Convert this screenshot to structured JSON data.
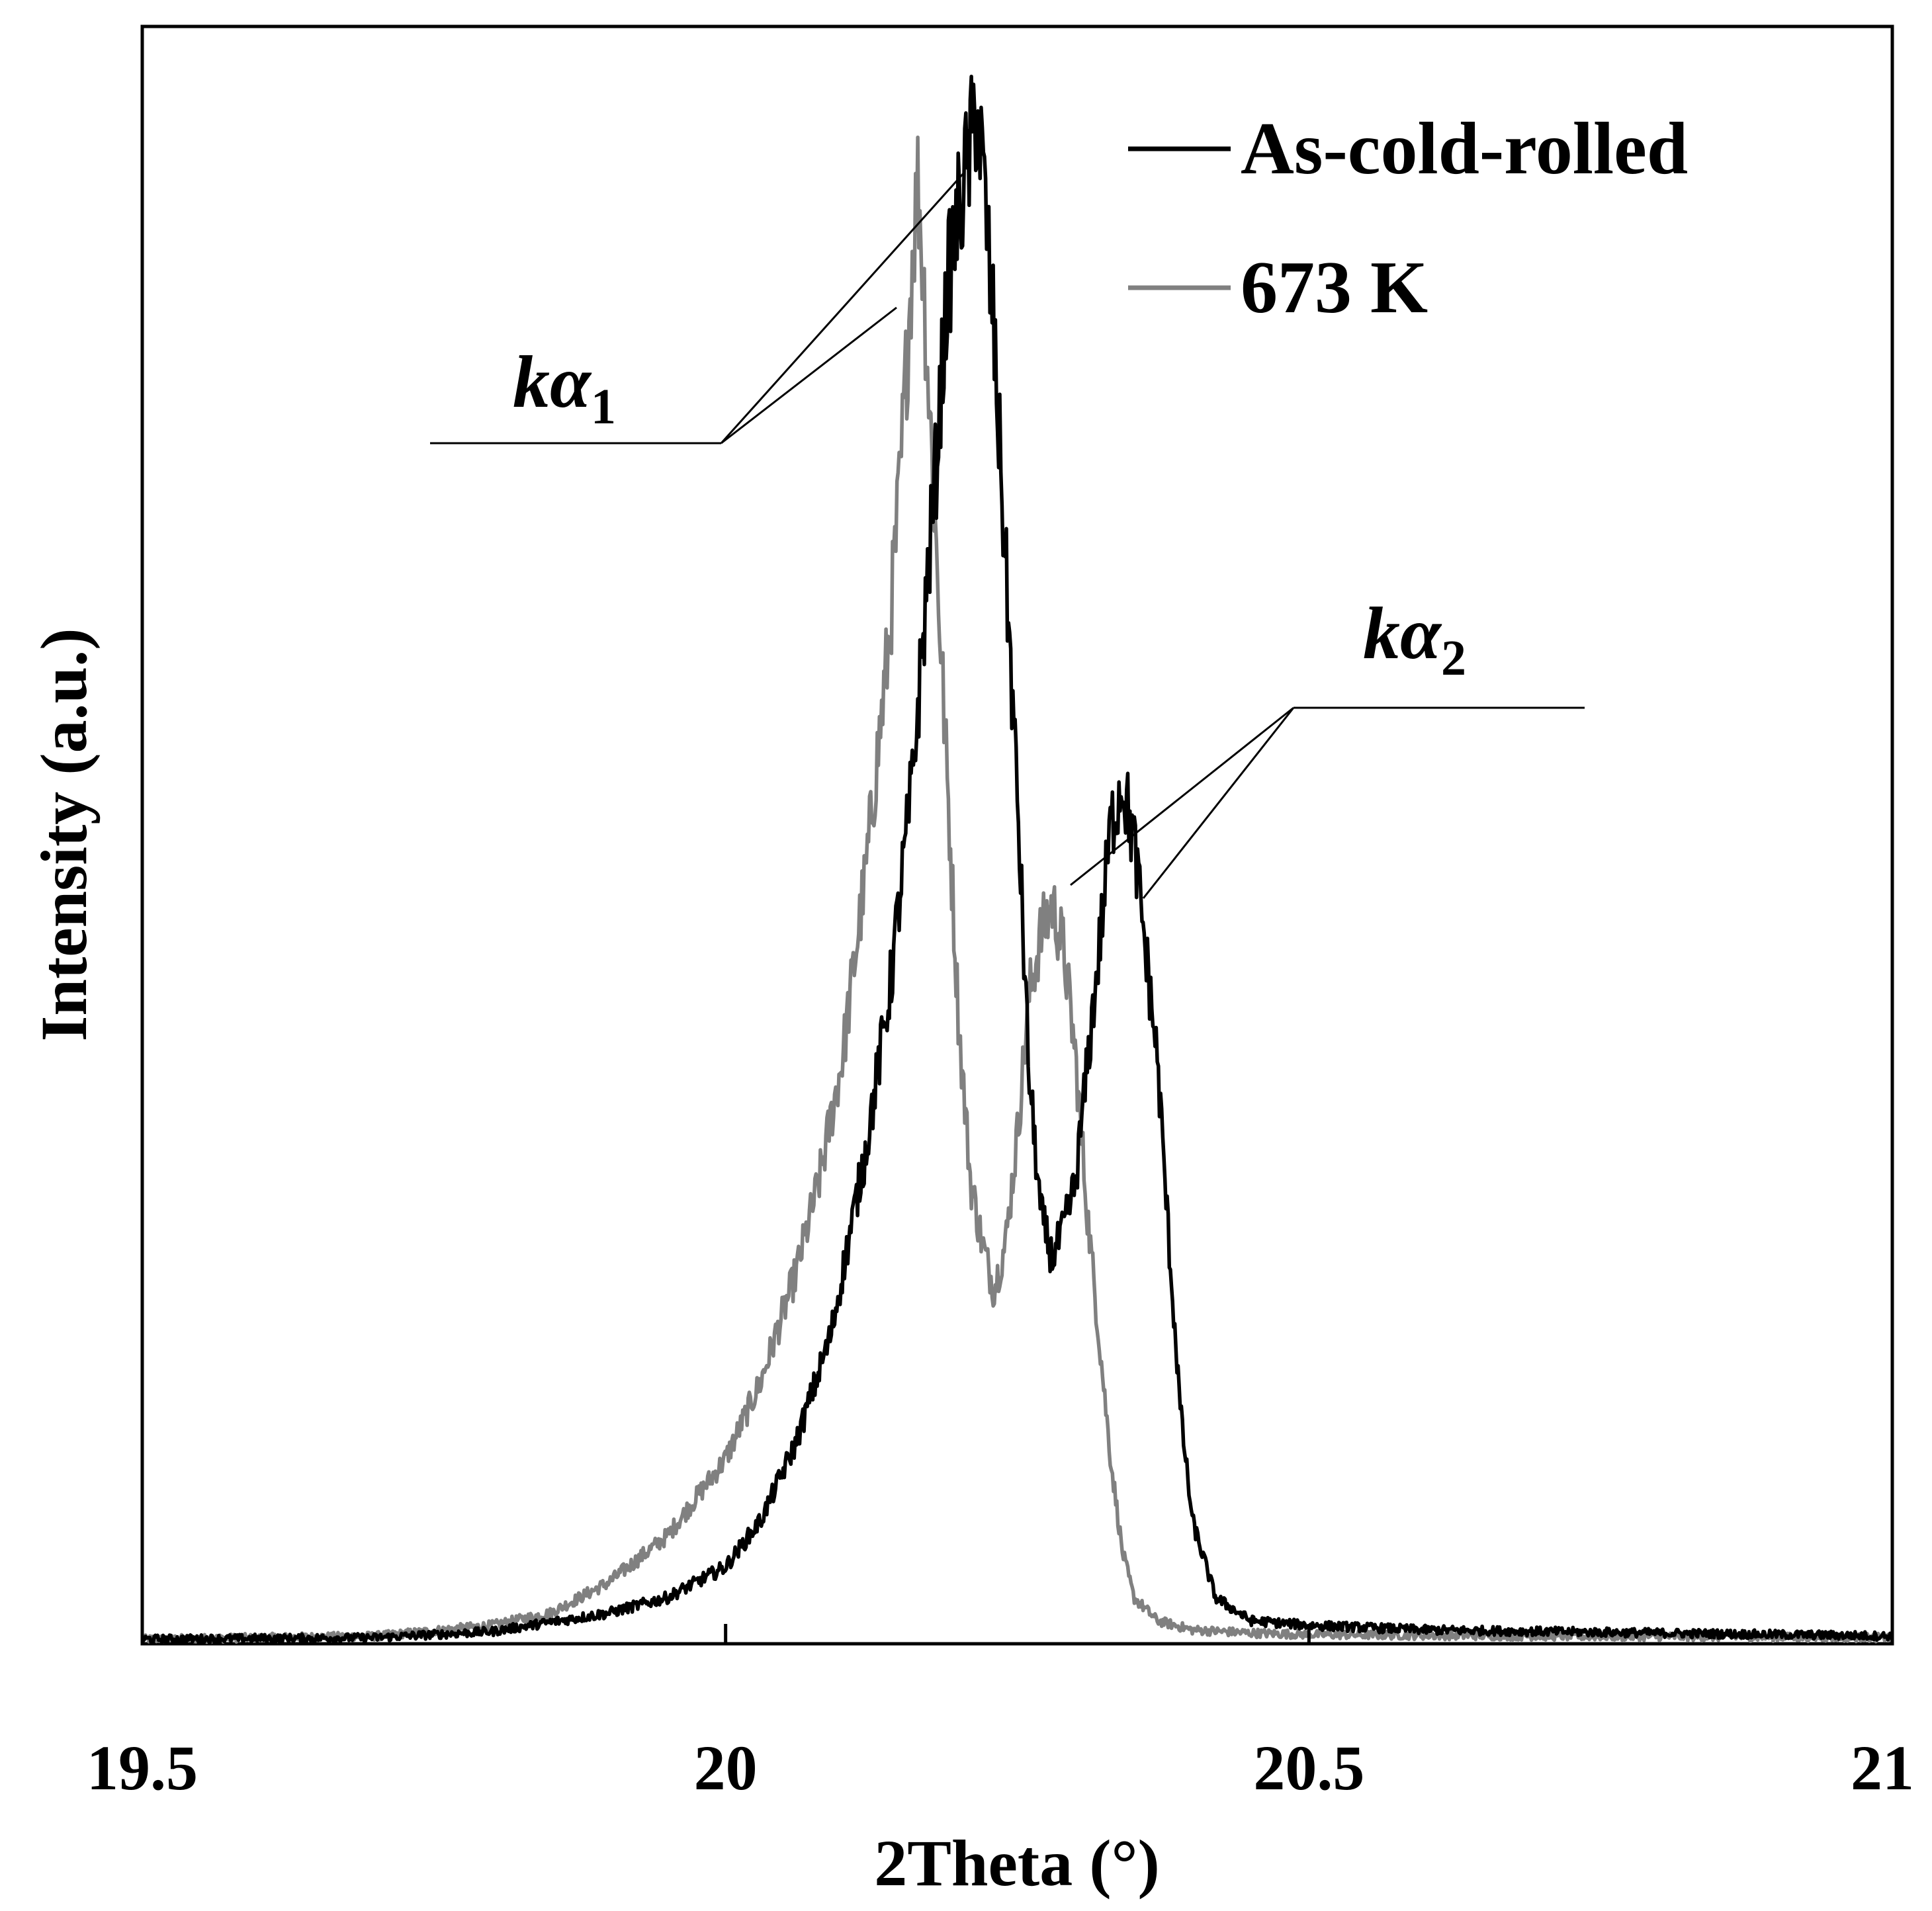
{
  "chart_data": {
    "type": "line",
    "title": "",
    "xlabel": "2Theta (°)",
    "ylabel": "Intensity (a.u.)",
    "xlim": [
      19.5,
      21
    ],
    "ylim": [
      0,
      1.05
    ],
    "xticks": [
      19.5,
      20,
      20.5,
      21
    ],
    "xtick_labels": [
      "19.5",
      "20",
      "20.5",
      "21"
    ],
    "grid": false,
    "legend_position": "top-right",
    "series": [
      {
        "name": "As-cold-rolled",
        "color": "#000000",
        "x": [
          19.5,
          19.7,
          19.8,
          19.9,
          19.95,
          20.0,
          20.03,
          20.06,
          20.09,
          20.12,
          20.14,
          20.16,
          20.18,
          20.19,
          20.2,
          20.21,
          20.215,
          20.22,
          20.23,
          20.24,
          20.25,
          20.26,
          20.27,
          20.28,
          20.29,
          20.3,
          20.32,
          20.33,
          20.34,
          20.35,
          20.36,
          20.37,
          20.38,
          20.39,
          20.4,
          20.42,
          20.45,
          20.5,
          20.6,
          20.8,
          21.0
        ],
        "y": [
          0.003,
          0.004,
          0.008,
          0.02,
          0.03,
          0.05,
          0.08,
          0.13,
          0.2,
          0.32,
          0.42,
          0.56,
          0.76,
          0.88,
          0.93,
          0.97,
          1.0,
          0.96,
          0.85,
          0.7,
          0.55,
          0.37,
          0.28,
          0.25,
          0.27,
          0.3,
          0.45,
          0.53,
          0.56,
          0.52,
          0.45,
          0.38,
          0.26,
          0.15,
          0.08,
          0.03,
          0.015,
          0.012,
          0.009,
          0.007,
          0.005
        ]
      },
      {
        "name": "673 K",
        "color": "#808080",
        "x": [
          19.5,
          19.7,
          19.8,
          19.85,
          19.9,
          19.95,
          20.0,
          20.03,
          20.06,
          20.08,
          20.1,
          20.12,
          20.14,
          20.15,
          20.16,
          20.165,
          20.17,
          20.18,
          20.19,
          20.2,
          20.21,
          20.22,
          20.23,
          20.24,
          20.25,
          20.26,
          20.27,
          20.28,
          20.29,
          20.3,
          20.31,
          20.32,
          20.33,
          20.34,
          20.35,
          20.37,
          20.4,
          20.45,
          20.5,
          20.7,
          21.0
        ],
        "y": [
          0.003,
          0.005,
          0.012,
          0.02,
          0.04,
          0.07,
          0.12,
          0.17,
          0.24,
          0.3,
          0.38,
          0.5,
          0.65,
          0.76,
          0.9,
          0.95,
          0.88,
          0.72,
          0.56,
          0.4,
          0.3,
          0.26,
          0.23,
          0.26,
          0.33,
          0.42,
          0.46,
          0.48,
          0.45,
          0.38,
          0.28,
          0.2,
          0.12,
          0.06,
          0.03,
          0.015,
          0.009,
          0.007,
          0.006,
          0.005,
          0.004
        ]
      }
    ],
    "annotations": [
      {
        "text": "kα",
        "subscript": "1",
        "points_to": [
          {
            "x": 20.17,
            "y": 0.88
          },
          {
            "x": 20.21,
            "y": 0.97
          }
        ]
      },
      {
        "text": "kα",
        "subscript": "2",
        "points_to": [
          {
            "x": 20.29,
            "y": 0.48
          },
          {
            "x": 20.35,
            "y": 0.52
          }
        ]
      }
    ]
  }
}
